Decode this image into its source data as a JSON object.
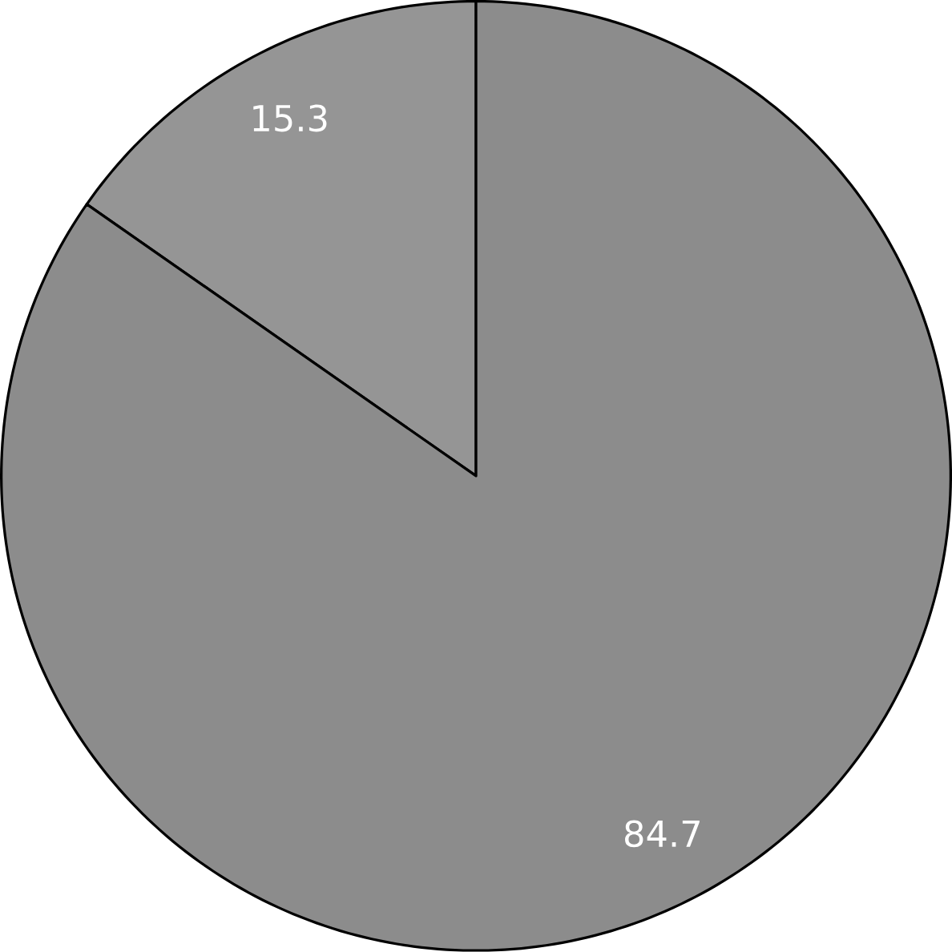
{
  "chart_data": {
    "type": "pie",
    "categories": [
      null,
      null
    ],
    "values": [
      15.3,
      84.7
    ],
    "colors": [
      "#959595",
      "#8c8c8c"
    ],
    "data_labels": true
  }
}
